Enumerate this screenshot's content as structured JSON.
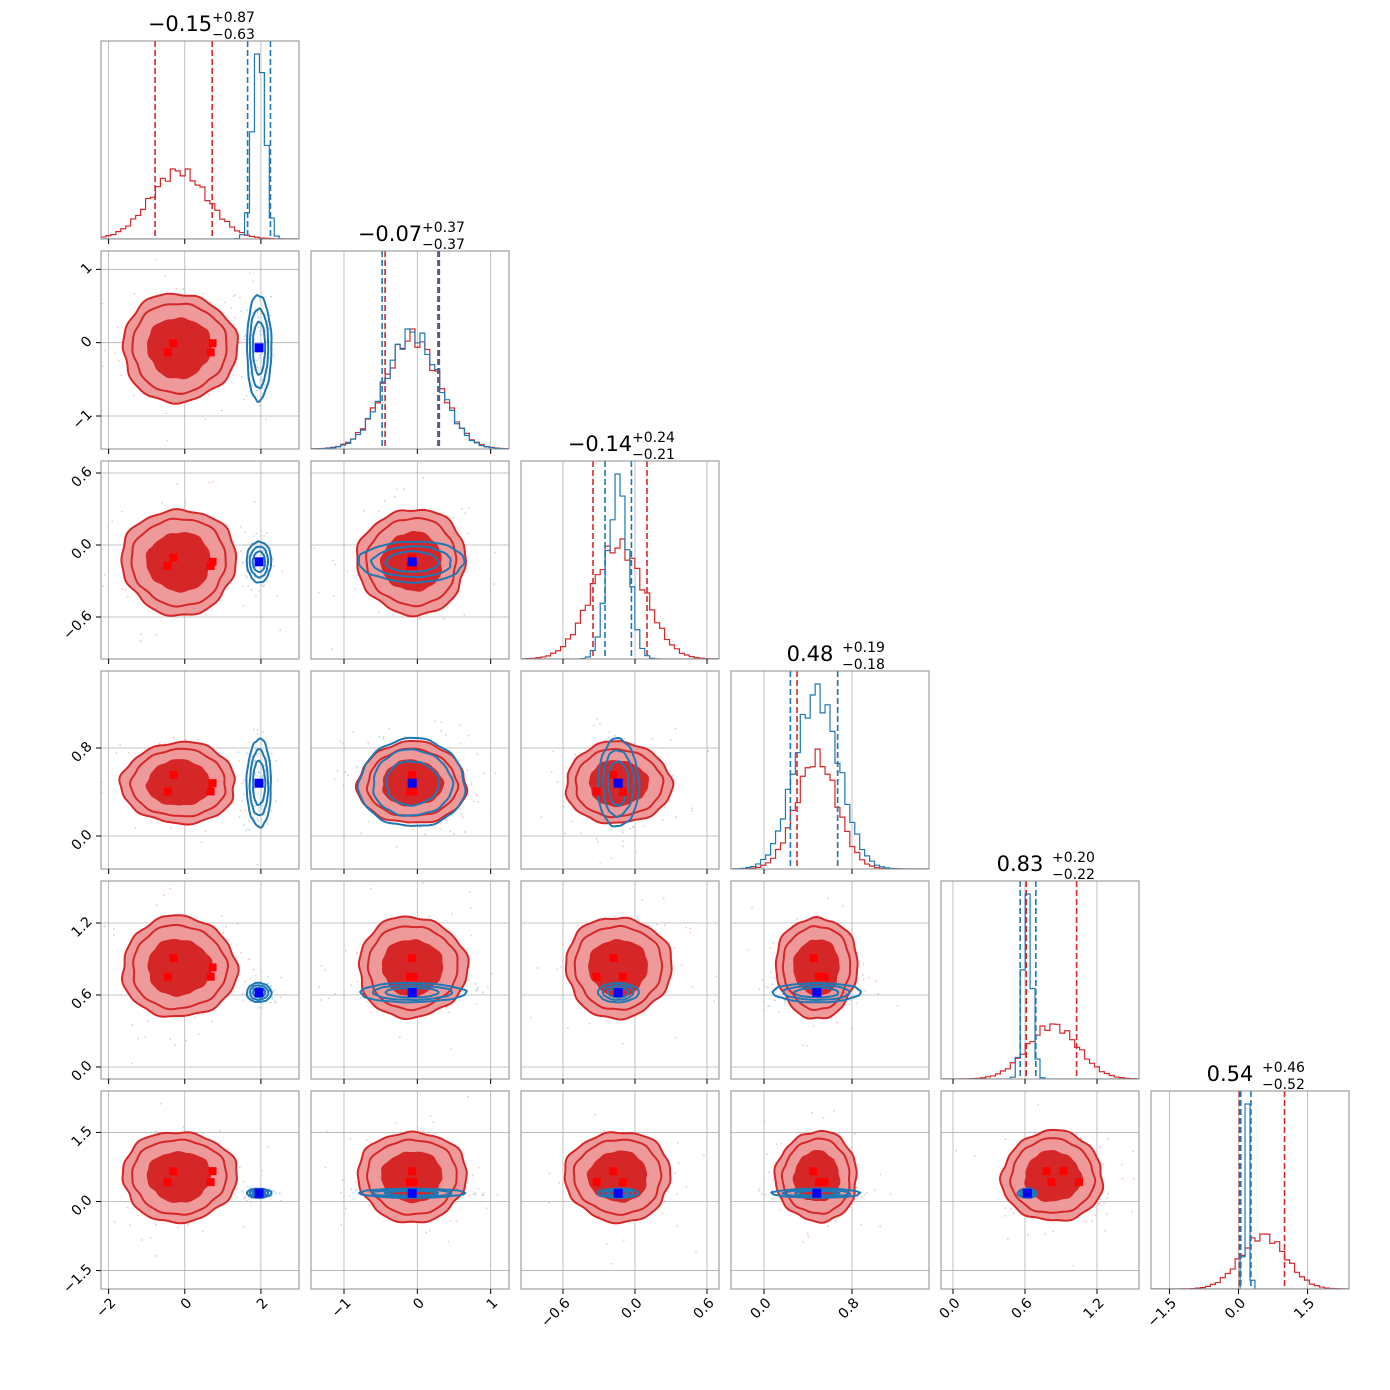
{
  "chart_data": {
    "type": "corner",
    "grid": true,
    "colors": {
      "red_series": "#d62728",
      "red_fill_light": "#ee9a9b",
      "red_fill_dark": "#d62728",
      "blue_series": "#1f77b4",
      "truth_blue": "#0000ff",
      "truth_red": "#ff0000",
      "frame": "#8c8c8c",
      "grid": "#b0b0b0"
    },
    "parameters": [
      {
        "range": [
          -2.2,
          3.0
        ],
        "ticks": [
          -2,
          0,
          2
        ],
        "tick_labels": [
          "−2",
          "0",
          "2"
        ],
        "title": {
          "main": "−0.15",
          "sup": "+0.87",
          "sub": "−0.63"
        }
      },
      {
        "range": [
          -1.45,
          1.25
        ],
        "ticks": [
          -1,
          0,
          1
        ],
        "tick_labels": [
          "−1",
          "0",
          "1"
        ],
        "title": {
          "main": "−0.07",
          "sup": "+0.37",
          "sub": "−0.37"
        }
      },
      {
        "range": [
          -0.95,
          0.7
        ],
        "ticks": [
          -0.6,
          0.0,
          0.6
        ],
        "tick_labels": [
          "−0.6",
          "0.0",
          "0.6"
        ],
        "title": {
          "main": "−0.14",
          "sup": "+0.24",
          "sub": "−0.21"
        }
      },
      {
        "range": [
          -0.3,
          1.5
        ],
        "ticks": [
          0.0,
          0.8
        ],
        "tick_labels": [
          "0.0",
          "0.8"
        ],
        "title": {
          "main": "0.48",
          "sup": "+0.19",
          "sub": "−0.18"
        }
      },
      {
        "range": [
          -0.1,
          1.55
        ],
        "ticks": [
          0.0,
          0.6,
          1.2
        ],
        "tick_labels": [
          "0.0",
          "0.6",
          "1.2"
        ],
        "title": {
          "main": "0.83",
          "sup": "+0.20",
          "sub": "−0.22"
        }
      },
      {
        "range": [
          -1.9,
          2.4
        ],
        "ticks": [
          -1.5,
          0.0,
          1.5
        ],
        "tick_labels": [
          "−1.5",
          "0.0",
          "1.5"
        ],
        "title": {
          "main": "0.54",
          "sup": "+0.46",
          "sub": "−0.52"
        }
      }
    ],
    "series": [
      {
        "color_key": "red",
        "mean": [
          -0.15,
          -0.07,
          -0.14,
          0.48,
          0.83,
          0.54
        ],
        "sigma": [
          0.75,
          0.37,
          0.22,
          0.185,
          0.21,
          0.49
        ],
        "quantile_lines": [
          [
            -0.78,
            0.72
          ],
          [
            -0.44,
            0.3
          ],
          [
            -0.35,
            0.1
          ],
          [
            0.3,
            0.67
          ],
          [
            0.61,
            1.03
          ],
          [
            0.02,
            1.0
          ]
        ]
      },
      {
        "color_key": "blue",
        "mean": [
          1.95,
          -0.07,
          -0.14,
          0.48,
          0.62,
          0.18
        ],
        "sigma": [
          0.16,
          0.36,
          0.085,
          0.2,
          0.04,
          0.05
        ],
        "quantile_lines": [
          [
            1.65,
            2.25
          ],
          [
            -0.48,
            0.28
          ],
          [
            -0.25,
            -0.03
          ],
          [
            0.24,
            0.67
          ],
          [
            0.56,
            0.69
          ],
          [
            0.05,
            0.27
          ]
        ]
      }
    ],
    "truth_blue": [
      1.95,
      -0.07,
      -0.14,
      0.48,
      0.62,
      0.18
    ],
    "truth_red": [
      [
        -0.45,
        -0.3,
        0.68,
        0.73
      ],
      [
        -0.1,
        -0.07,
        -0.05
      ],
      [
        -0.32,
        -0.18,
        -0.1
      ],
      [
        0.5,
        0.45,
        0.55
      ],
      [
        1.05,
        0.92,
        0.82,
        0.78
      ],
      [
        0.8,
        0.63,
        0.32,
        0.18
      ]
    ],
    "truth_red_y": [
      [
        -0.07,
        -0.07,
        -0.05,
        -0.05
      ],
      [
        -0.12,
        -0.18,
        -0.14
      ],
      [
        0.55,
        0.45,
        0.5
      ],
      [
        1.05,
        0.92,
        0.82
      ],
      [
        0.8,
        0.62,
        0.32,
        0.18
      ],
      [
        0,
        0,
        0,
        0
      ]
    ]
  }
}
